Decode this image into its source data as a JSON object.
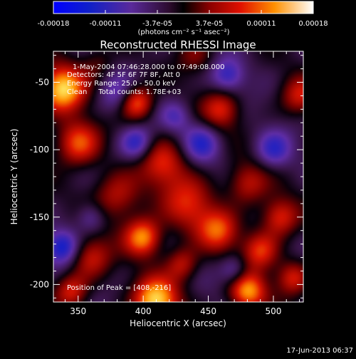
{
  "chart_data": {
    "type": "heatmap",
    "title": "Reconstructed RHESSI Image",
    "xlabel": "Heliocentric X (arcsec)",
    "ylabel": "Heliocentric Y (arcsec)",
    "xlim": [
      331,
      523
    ],
    "ylim": [
      -213,
      -27
    ],
    "x_ticks": [
      350,
      400,
      450,
      500
    ],
    "y_ticks": [
      -50,
      -100,
      -150,
      -200
    ],
    "colorbar": {
      "ticks": [
        "-0.00018",
        "-0.00011",
        "-3.7e-05",
        "3.7e-05",
        "0.00011",
        "0.00018"
      ],
      "min": -0.00018,
      "max": 0.00018,
      "units_label": "(photons cm⁻² s⁻¹ asec⁻²)"
    },
    "annotations": [
      "1-May-2004 07:46:28.000 to 07:49:08.000",
      "Detectors: 4F 5F 6F 7F 8F, Att 0",
      "Energy Range: 25.0 - 50.0 keV",
      "Clean     Total counts: 1.78E+03"
    ],
    "peak_label": "Position of Peak = [408,-216]",
    "timestamp": "17-Jun-2013 06:37",
    "blobs": [
      {
        "x": 338,
        "y": -55,
        "v": 1.0,
        "s": 12
      },
      {
        "x": 395,
        "y": -65,
        "v": 0.75,
        "s": 9
      },
      {
        "x": 350,
        "y": -95,
        "v": 0.7,
        "s": 12
      },
      {
        "x": 415,
        "y": -110,
        "v": 0.55,
        "s": 13
      },
      {
        "x": 460,
        "y": -70,
        "v": 0.55,
        "s": 10
      },
      {
        "x": 480,
        "y": -125,
        "v": 0.5,
        "s": 11
      },
      {
        "x": 435,
        "y": -140,
        "v": 0.55,
        "s": 14
      },
      {
        "x": 380,
        "y": -135,
        "v": 0.5,
        "s": 13
      },
      {
        "x": 505,
        "y": -150,
        "v": 0.6,
        "s": 10
      },
      {
        "x": 400,
        "y": -165,
        "v": 0.85,
        "s": 10
      },
      {
        "x": 458,
        "y": -160,
        "v": 0.65,
        "s": 11
      },
      {
        "x": 490,
        "y": -175,
        "v": 0.6,
        "s": 10
      },
      {
        "x": 360,
        "y": -180,
        "v": 0.5,
        "s": 11
      },
      {
        "x": 410,
        "y": -212,
        "v": 1.0,
        "s": 12
      },
      {
        "x": 480,
        "y": -205,
        "v": 0.85,
        "s": 10
      },
      {
        "x": 345,
        "y": -205,
        "v": 0.55,
        "s": 9
      },
      {
        "x": 520,
        "y": -60,
        "v": 0.5,
        "s": 10
      },
      {
        "x": 440,
        "y": -30,
        "v": 0.3,
        "s": 10
      },
      {
        "x": 365,
        "y": -35,
        "v": 0.25,
        "s": 9
      },
      {
        "x": 515,
        "y": -195,
        "v": 0.55,
        "s": 9
      },
      {
        "x": 430,
        "y": -185,
        "v": 0.5,
        "s": 9
      },
      {
        "x": 395,
        "y": -95,
        "v": -0.55,
        "s": 9
      },
      {
        "x": 445,
        "y": -95,
        "v": -0.45,
        "s": 10
      },
      {
        "x": 465,
        "y": -45,
        "v": -0.45,
        "s": 9
      },
      {
        "x": 338,
        "y": -172,
        "v": -0.6,
        "s": 9
      },
      {
        "x": 500,
        "y": -100,
        "v": -0.45,
        "s": 10
      },
      {
        "x": 380,
        "y": -60,
        "v": -0.35,
        "s": 10
      },
      {
        "x": 470,
        "y": -190,
        "v": -0.4,
        "s": 8
      },
      {
        "x": 425,
        "y": -75,
        "v": -0.3,
        "s": 8
      },
      {
        "x": 360,
        "y": -150,
        "v": -0.35,
        "s": 8
      }
    ]
  }
}
